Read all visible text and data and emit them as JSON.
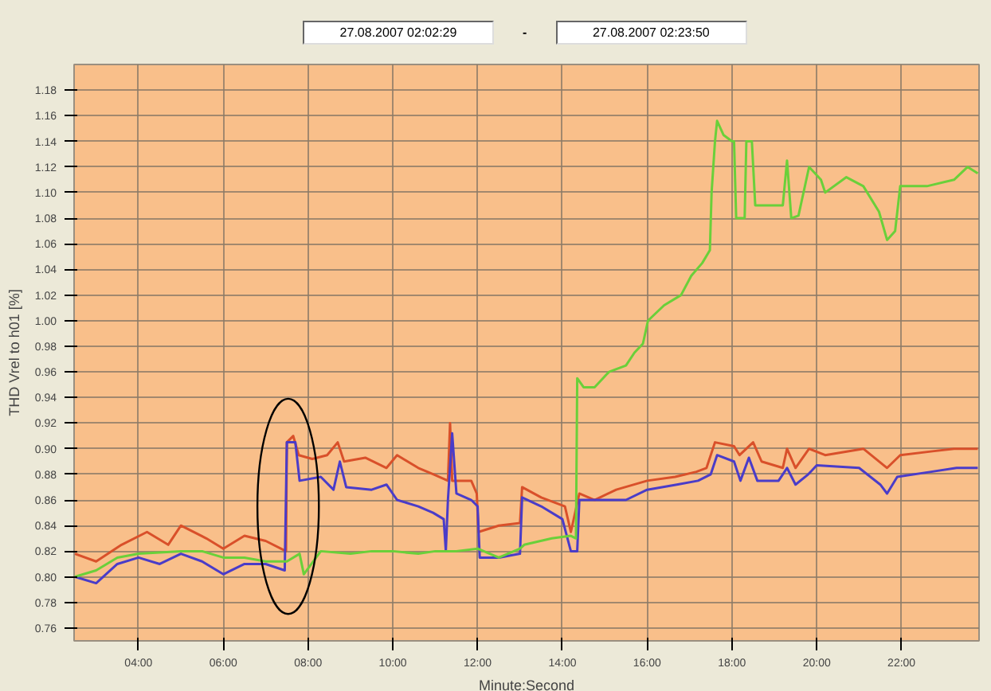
{
  "chart_data": {
    "type": "line",
    "annotations": [
      "27.08.2007 02:02:29",
      "-",
      "27.08.2007 02:23:50"
    ],
    "xlabel": "Minute:Second",
    "ylabel": "THD Vrel to h01 [%]",
    "xlim": [
      2.48,
      23.83
    ],
    "ylim": [
      0.75,
      1.2
    ],
    "xticks": [
      {
        "value": 4,
        "label": "04:00"
      },
      {
        "value": 6,
        "label": "06:00"
      },
      {
        "value": 8,
        "label": "08:00"
      },
      {
        "value": 10,
        "label": "10:00"
      },
      {
        "value": 12,
        "label": "12:00"
      },
      {
        "value": 14,
        "label": "14:00"
      },
      {
        "value": 16,
        "label": "16:00"
      },
      {
        "value": 18,
        "label": "18:00"
      },
      {
        "value": 20,
        "label": "20:00"
      },
      {
        "value": 22,
        "label": "22:00"
      }
    ],
    "yticks": [
      {
        "value": 0.76,
        "label": "0.76"
      },
      {
        "value": 0.78,
        "label": "0.78"
      },
      {
        "value": 0.8,
        "label": "0.80"
      },
      {
        "value": 0.82,
        "label": "0.82"
      },
      {
        "value": 0.84,
        "label": "0.84"
      },
      {
        "value": 0.86,
        "label": "0.86"
      },
      {
        "value": 0.88,
        "label": "0.88"
      },
      {
        "value": 0.9,
        "label": "0.90"
      },
      {
        "value": 0.92,
        "label": "0.92"
      },
      {
        "value": 0.94,
        "label": "0.94"
      },
      {
        "value": 0.96,
        "label": "0.96"
      },
      {
        "value": 0.98,
        "label": "0.98"
      },
      {
        "value": 1.0,
        "label": "1.00"
      },
      {
        "value": 1.02,
        "label": "1.02"
      },
      {
        "value": 1.04,
        "label": "1.04"
      },
      {
        "value": 1.06,
        "label": "1.06"
      },
      {
        "value": 1.08,
        "label": "1.08"
      },
      {
        "value": 1.1,
        "label": "1.10"
      },
      {
        "value": 1.12,
        "label": "1.12"
      },
      {
        "value": 1.14,
        "label": "1.14"
      },
      {
        "value": 1.16,
        "label": "1.16"
      },
      {
        "value": 1.18,
        "label": "1.18"
      }
    ],
    "grid": true,
    "marker": "none",
    "line_style": "solid",
    "series": [
      {
        "color": "#d9502a",
        "x": [
          2.5,
          3.0,
          3.6,
          4.2,
          4.7,
          5.0,
          5.6,
          6.0,
          6.5,
          7.0,
          7.48,
          7.5,
          7.65,
          7.78,
          8.1,
          8.45,
          8.7,
          8.85,
          9.35,
          9.85,
          10.1,
          10.6,
          10.96,
          11.3,
          11.35,
          11.4,
          11.85,
          11.98,
          12.02,
          12.5,
          13.0,
          13.05,
          13.5,
          14.06,
          14.2,
          14.4,
          14.76,
          15.27,
          16.0,
          16.66,
          17.16,
          17.4,
          17.6,
          18.05,
          18.18,
          18.5,
          18.7,
          19.2,
          19.3,
          19.5,
          19.82,
          20.2,
          21.1,
          21.66,
          21.97,
          22.73,
          23.24,
          23.8
        ],
        "values": [
          0.818,
          0.812,
          0.825,
          0.835,
          0.825,
          0.84,
          0.83,
          0.822,
          0.832,
          0.828,
          0.82,
          0.905,
          0.91,
          0.895,
          0.892,
          0.895,
          0.905,
          0.89,
          0.893,
          0.885,
          0.895,
          0.885,
          0.88,
          0.875,
          0.92,
          0.875,
          0.875,
          0.865,
          0.835,
          0.84,
          0.842,
          0.87,
          0.862,
          0.855,
          0.835,
          0.865,
          0.86,
          0.868,
          0.875,
          0.878,
          0.882,
          0.885,
          0.905,
          0.902,
          0.895,
          0.905,
          0.89,
          0.885,
          0.9,
          0.885,
          0.9,
          0.895,
          0.9,
          0.885,
          0.895,
          0.898,
          0.9,
          0.9
        ]
      },
      {
        "color": "#4a3cc8",
        "x": [
          2.5,
          3.0,
          3.5,
          4.0,
          4.5,
          5.0,
          5.5,
          6.0,
          6.5,
          7.0,
          7.45,
          7.5,
          7.7,
          7.8,
          8.3,
          8.6,
          8.75,
          8.9,
          9.5,
          9.85,
          10.1,
          10.6,
          10.95,
          11.2,
          11.25,
          11.3,
          11.4,
          11.5,
          11.85,
          12.0,
          12.05,
          12.5,
          13.0,
          13.05,
          13.5,
          14.0,
          14.2,
          14.35,
          14.4,
          15.0,
          15.5,
          16.0,
          16.7,
          17.2,
          17.5,
          17.65,
          18.05,
          18.2,
          18.4,
          18.6,
          19.1,
          19.3,
          19.5,
          19.8,
          20.0,
          21.0,
          21.5,
          21.66,
          21.9,
          22.7,
          23.3,
          23.8
        ],
        "values": [
          0.8,
          0.795,
          0.81,
          0.815,
          0.81,
          0.818,
          0.812,
          0.802,
          0.81,
          0.81,
          0.805,
          0.905,
          0.905,
          0.875,
          0.878,
          0.868,
          0.89,
          0.87,
          0.868,
          0.872,
          0.86,
          0.855,
          0.85,
          0.845,
          0.82,
          0.86,
          0.912,
          0.865,
          0.86,
          0.855,
          0.815,
          0.815,
          0.818,
          0.862,
          0.855,
          0.845,
          0.82,
          0.82,
          0.86,
          0.86,
          0.86,
          0.868,
          0.872,
          0.875,
          0.88,
          0.895,
          0.89,
          0.875,
          0.893,
          0.875,
          0.875,
          0.885,
          0.872,
          0.88,
          0.887,
          0.885,
          0.872,
          0.865,
          0.878,
          0.882,
          0.885,
          0.885
        ]
      },
      {
        "color": "#6ad03a",
        "x": [
          2.5,
          3.0,
          3.5,
          4.0,
          5.0,
          5.5,
          6.0,
          6.5,
          7.0,
          7.5,
          7.8,
          7.9,
          8.3,
          9.0,
          9.5,
          10.0,
          10.6,
          11.0,
          11.5,
          12.0,
          12.5,
          13.0,
          13.1,
          13.75,
          14.2,
          14.32,
          14.35,
          14.5,
          14.76,
          15.1,
          15.5,
          15.7,
          15.9,
          16.02,
          16.4,
          16.8,
          17.04,
          17.3,
          17.48,
          17.52,
          17.6,
          17.65,
          17.8,
          18.0,
          18.05,
          18.1,
          18.3,
          18.34,
          18.47,
          18.55,
          18.9,
          19.2,
          19.3,
          19.4,
          19.57,
          19.82,
          20.1,
          20.2,
          20.7,
          21.1,
          21.47,
          21.66,
          21.85,
          21.97,
          22.6,
          23.24,
          23.56,
          23.8
        ],
        "values": [
          0.8,
          0.805,
          0.815,
          0.818,
          0.82,
          0.82,
          0.815,
          0.815,
          0.812,
          0.812,
          0.818,
          0.802,
          0.82,
          0.818,
          0.82,
          0.82,
          0.818,
          0.82,
          0.82,
          0.822,
          0.815,
          0.822,
          0.825,
          0.83,
          0.832,
          0.83,
          0.955,
          0.948,
          0.948,
          0.96,
          0.965,
          0.975,
          0.982,
          1.0,
          1.012,
          1.02,
          1.035,
          1.045,
          1.055,
          1.1,
          1.14,
          1.156,
          1.145,
          1.14,
          1.14,
          1.08,
          1.08,
          1.14,
          1.14,
          1.09,
          1.09,
          1.09,
          1.125,
          1.08,
          1.082,
          1.12,
          1.11,
          1.1,
          1.112,
          1.105,
          1.085,
          1.063,
          1.07,
          1.105,
          1.105,
          1.11,
          1.12,
          1.115
        ]
      }
    ]
  }
}
